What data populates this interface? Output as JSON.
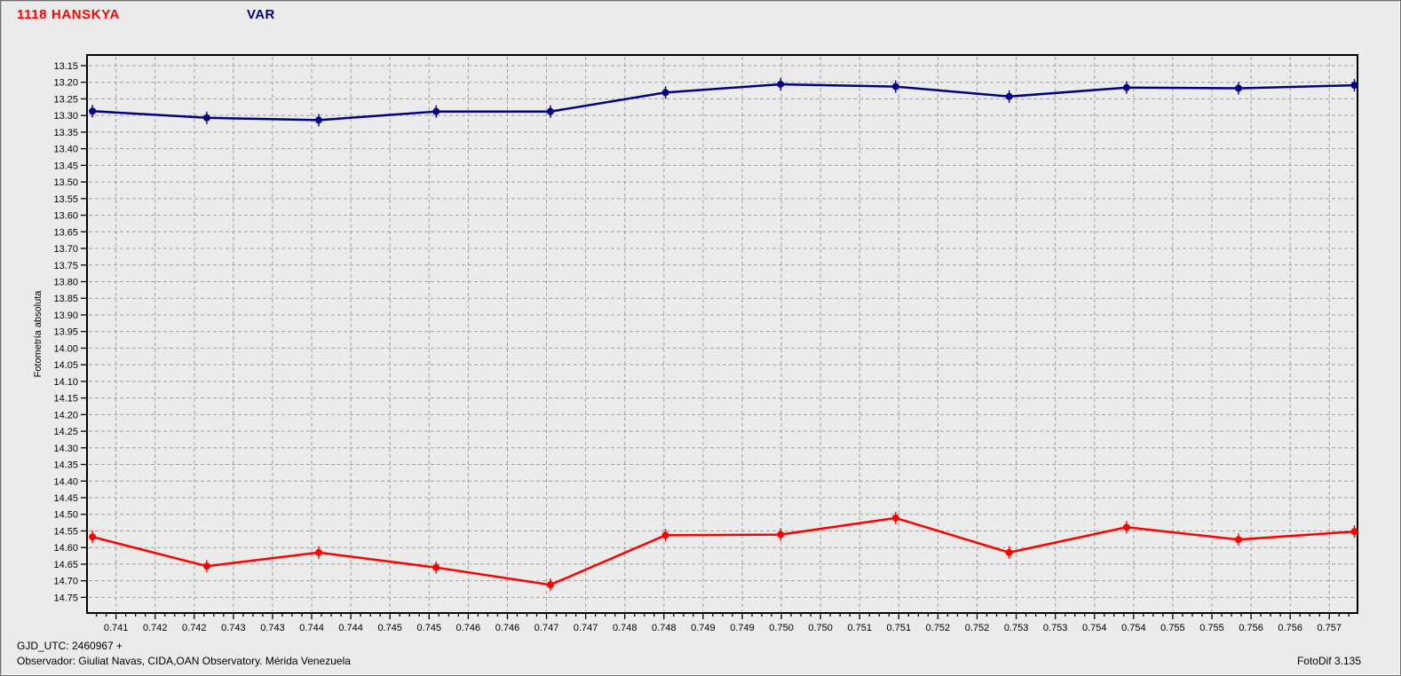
{
  "header": {
    "object_title": "1118 HANSKYA",
    "object_title_color": "#ff0000",
    "series_title": "VAR",
    "series_title_color": "#000080"
  },
  "footer": {
    "gjd_utc": "GJD_UTC: 2460967 +",
    "observer": "Observador: Giuliat Navas, CIDA,OAN Observatory. Mérida Venezuela",
    "app_version": "FotoDif 3.135"
  },
  "colors": {
    "background": "#ebebeb",
    "grid": "#a0a0a0",
    "frame": "#000000",
    "text": "#000000",
    "red_series": "#ff0000",
    "blue_series": "#000080"
  },
  "chart_data": {
    "type": "line",
    "ylabel": "Fotometría absoluta",
    "xlabel": "",
    "grid": true,
    "error_bars": true,
    "y_inverted": true,
    "xlim": [
      0.74063,
      0.75686
    ],
    "ylim": [
      13.118,
      14.797
    ],
    "legend": [
      {
        "label": "1118 HANSKYA",
        "color": "#ff0000"
      },
      {
        "label": "VAR",
        "color": "#000080"
      }
    ],
    "y_ticks": [
      "13.15",
      "13.20",
      "13.25",
      "13.30",
      "13.35",
      "13.40",
      "13.45",
      "13.50",
      "13.55",
      "13.60",
      "13.65",
      "13.70",
      "13.75",
      "13.80",
      "13.85",
      "13.90",
      "13.95",
      "14.00",
      "14.05",
      "14.10",
      "14.15",
      "14.20",
      "14.25",
      "14.30",
      "14.35",
      "14.40",
      "14.45",
      "14.50",
      "14.55",
      "14.60",
      "14.65",
      "14.70",
      "14.75"
    ],
    "x_tick_values": [
      0.741,
      0.7415,
      0.742,
      0.7425,
      0.743,
      0.7435,
      0.744,
      0.7445,
      0.745,
      0.7455,
      0.746,
      0.7465,
      0.747,
      0.7475,
      0.748,
      0.7485,
      0.749,
      0.7495,
      0.75,
      0.7505,
      0.751,
      0.7515,
      0.752,
      0.7525,
      0.753,
      0.7535,
      0.754,
      0.7545,
      0.755,
      0.7555,
      0.756,
      0.7565
    ],
    "x_tick_labels": [
      "0.741",
      "0.742",
      "0.742",
      "0.743",
      "0.743",
      "0.744",
      "0.744",
      "0.745",
      "0.745",
      "0.746",
      "0.746",
      "0.747",
      "0.747",
      "0.748",
      "0.748",
      "0.749",
      "0.749",
      "0.750",
      "0.750",
      "0.751",
      "0.751",
      "0.752",
      "0.752",
      "0.753",
      "0.753",
      "0.754",
      "0.754",
      "0.755",
      "0.755",
      "0.756",
      "0.756",
      "0.757"
    ],
    "series": [
      {
        "name": "1118 HANSKYA",
        "color": "#ff0000",
        "marker": "circle",
        "x": [
          0.7407,
          0.74216,
          0.74359,
          0.74509,
          0.74655,
          0.74802,
          0.74949,
          0.75096,
          0.75241,
          0.75391,
          0.75534,
          0.75682
        ],
        "values": [
          14.568,
          14.656,
          14.615,
          14.66,
          14.712,
          14.563,
          14.561,
          14.511,
          14.615,
          14.539,
          14.576,
          14.552
        ]
      },
      {
        "name": "VAR",
        "color": "#000080",
        "marker": "circle",
        "x": [
          0.7407,
          0.74216,
          0.74359,
          0.74509,
          0.74655,
          0.74802,
          0.74949,
          0.75096,
          0.75241,
          0.75391,
          0.75534,
          0.75682
        ],
        "values": [
          13.287,
          13.307,
          13.314,
          13.288,
          13.288,
          13.231,
          13.206,
          13.213,
          13.243,
          13.216,
          13.218,
          13.209
        ]
      }
    ]
  }
}
